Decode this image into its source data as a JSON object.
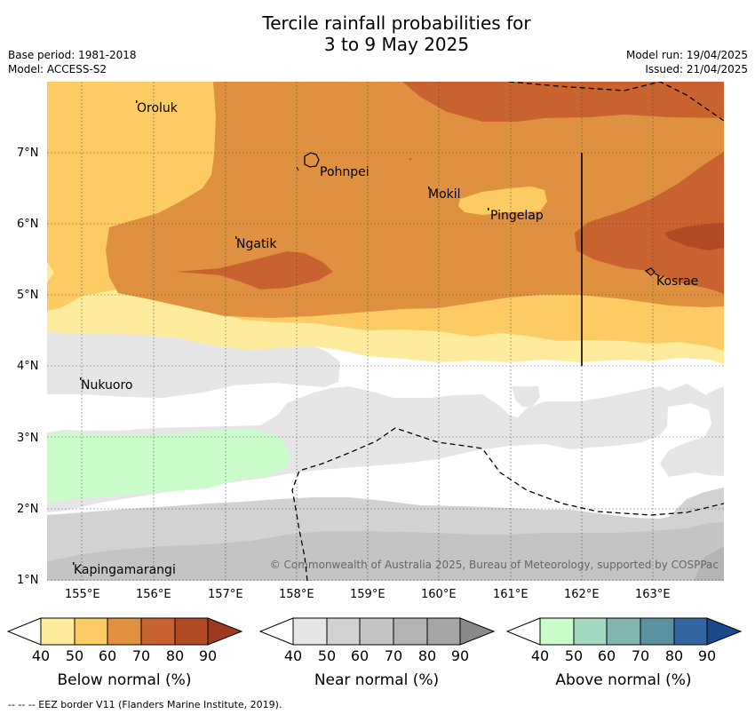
{
  "header": {
    "title_line1": "Tercile rainfall probabilities for",
    "title_line2": "3 to 9 May 2025",
    "base_period": "Base period: 1981-2018",
    "model": "Model: ACCESS-S2",
    "model_run": "Model run: 19/04/2025",
    "issued": "Issued: 21/04/2025"
  },
  "map": {
    "x_ticks": [
      "155°E",
      "156°E",
      "157°E",
      "158°E",
      "159°E",
      "160°E",
      "161°E",
      "162°E",
      "163°E"
    ],
    "y_ticks": [
      "7°N",
      "6°N",
      "5°N",
      "4°N",
      "3°N",
      "2°N",
      "1°N"
    ],
    "places": [
      "Oroluk",
      "Pohnpei",
      "Mokil",
      "Pingelap",
      "Ngatik",
      "Kosrae",
      "Nukuoro",
      "Kapingamarangi"
    ],
    "copyright": "© Commonwealth of Australia 2025, Bureau of Meteorology, supported by COSPPac",
    "grid": true
  },
  "legends": {
    "below": {
      "title": "Below normal (%)",
      "labels": [
        "40",
        "50",
        "60",
        "70",
        "80",
        "90"
      ],
      "colors": [
        "#ffffff",
        "#ffeb9c",
        "#fdcb63",
        "#e0913f",
        "#c8622e",
        "#b04b24",
        "#9e3a20"
      ]
    },
    "near": {
      "title": "Near normal (%)",
      "labels": [
        "40",
        "50",
        "60",
        "70",
        "80",
        "90"
      ],
      "colors": [
        "#ffffff",
        "#e6e6e6",
        "#d2d2d2",
        "#c4c4c4",
        "#b4b4b4",
        "#a6a6a6",
        "#8a8a8a"
      ]
    },
    "above": {
      "title": "Above normal (%)",
      "labels": [
        "40",
        "50",
        "60",
        "70",
        "80",
        "90"
      ],
      "colors": [
        "#ffffff",
        "#cafdc9",
        "#a2d9c0",
        "#82b5b0",
        "#5a939f",
        "#3366a0",
        "#1b4a8a"
      ]
    }
  },
  "footer": {
    "eez_note": "--  --  -- EEZ border V11 (Flanders Marine Institute, 2019)."
  }
}
